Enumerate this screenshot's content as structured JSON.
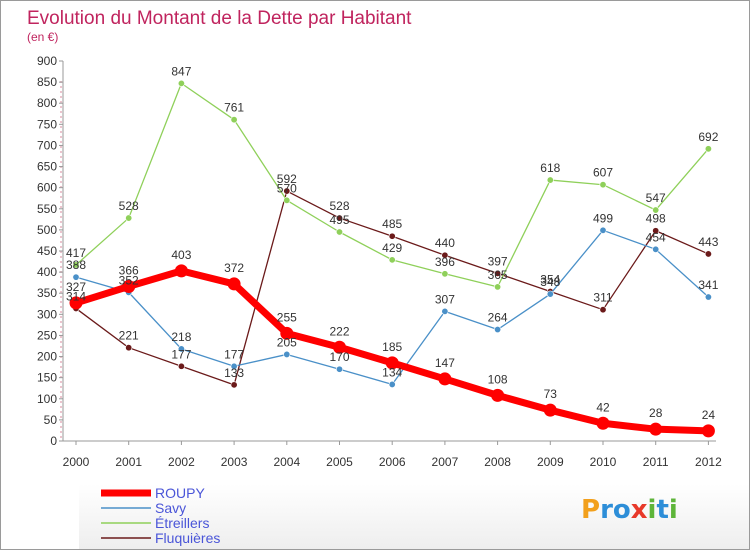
{
  "chart_data": {
    "type": "line",
    "title": "Evolution du Montant de la Dette par Habitant",
    "subtitle": "(en €)",
    "x": [
      "2000",
      "2001",
      "2002",
      "2003",
      "2004",
      "2005",
      "2006",
      "2007",
      "2008",
      "2009",
      "2010",
      "2011",
      "2012"
    ],
    "ylim": [
      0,
      900
    ],
    "yticks": [
      0,
      50,
      100,
      150,
      200,
      250,
      300,
      350,
      400,
      450,
      500,
      550,
      600,
      650,
      700,
      750,
      800,
      850,
      900
    ],
    "grid": false,
    "legend_position": "bottom-left",
    "series": [
      {
        "name": "ROUPY",
        "color": "#ff0000",
        "values": [
          327,
          366,
          403,
          372,
          255,
          222,
          185,
          147,
          108,
          73,
          42,
          28,
          24
        ]
      },
      {
        "name": "Savy",
        "color": "#4a90c8",
        "values": [
          388,
          352,
          218,
          177,
          205,
          170,
          134,
          307,
          264,
          348,
          499,
          454,
          341
        ]
      },
      {
        "name": "Étreillers",
        "color": "#8fd05a",
        "values": [
          417,
          528,
          847,
          761,
          570,
          495,
          429,
          396,
          365,
          618,
          607,
          547,
          692
        ]
      },
      {
        "name": "Fluquières",
        "color": "#6b1a1a",
        "values": [
          314,
          221,
          177,
          133,
          592,
          528,
          485,
          440,
          397,
          354,
          311,
          498,
          443
        ]
      }
    ]
  },
  "logo": {
    "text": "Proxiti"
  }
}
